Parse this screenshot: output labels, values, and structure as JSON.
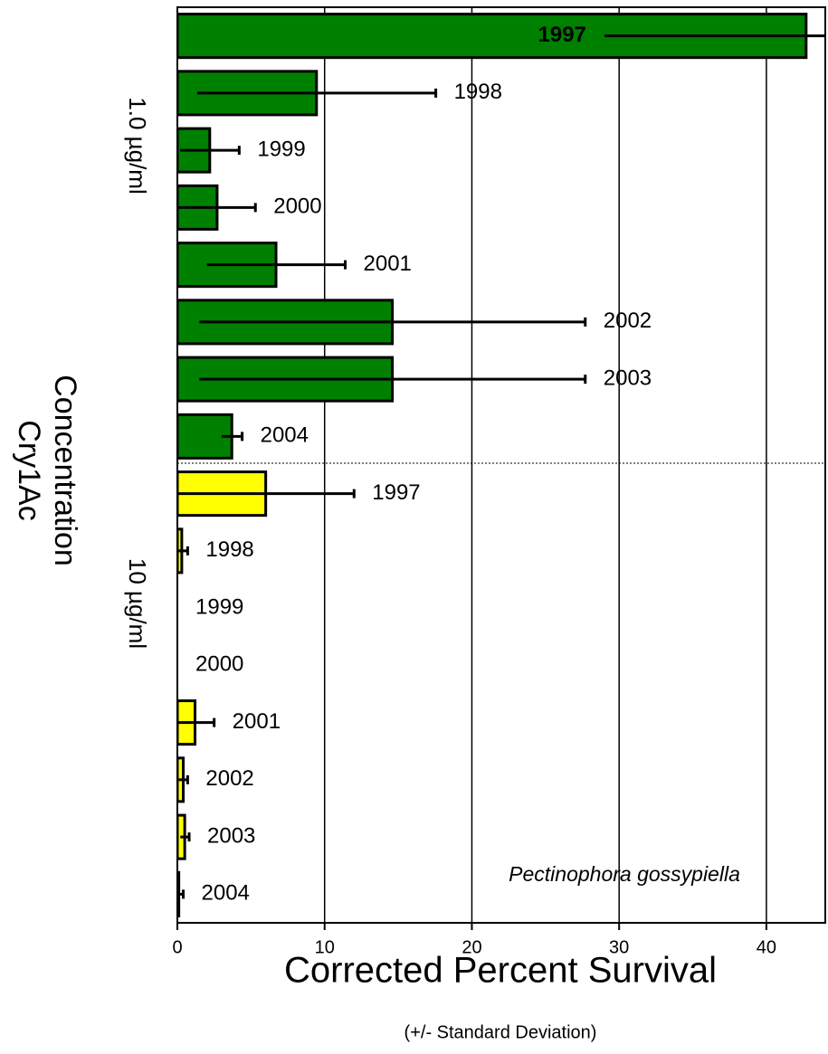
{
  "chart_data": {
    "type": "bar",
    "orientation": "horizontal",
    "categories": [
      "1997",
      "1998",
      "1999",
      "2000",
      "2001",
      "2002",
      "2003",
      "2004"
    ],
    "series": [
      {
        "name": "1.0 µg/ml",
        "color": "#008000",
        "values": [
          42.7,
          9.45,
          2.2,
          2.7,
          6.7,
          14.6,
          14.6,
          3.7
        ],
        "errors": [
          13.7,
          8.1,
          2.0,
          2.6,
          4.7,
          13.1,
          13.1,
          0.7
        ]
      },
      {
        "name": "10 µg/ml",
        "color": "#ffff00",
        "values": [
          6.0,
          0.3,
          0,
          0,
          1.2,
          0.4,
          0.5,
          0.1
        ],
        "errors": [
          6.0,
          0.4,
          0,
          0,
          1.3,
          0.3,
          0.3,
          0.3
        ]
      }
    ],
    "group_title": [
      "Concentration",
      "Cry1Ac"
    ],
    "xlabel": "Corrected Percent Survival",
    "xlabel_note": "(+/- Standard Deviation)",
    "annotation": "Pectinophora gossypiella",
    "xlim": [
      0,
      44
    ],
    "xticks": [
      0,
      10,
      20,
      30,
      40
    ],
    "grid": true
  }
}
